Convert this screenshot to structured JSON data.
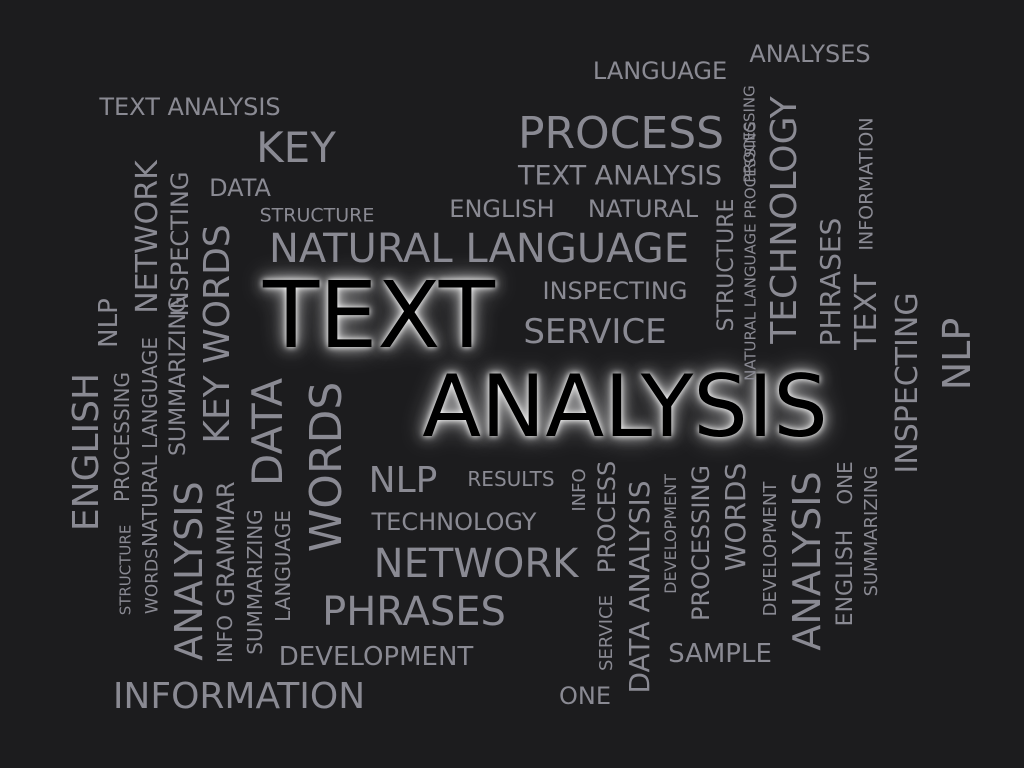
{
  "words": [
    {
      "text": "TEXT",
      "tier": "hero"
    },
    {
      "text": "ANALYSIS",
      "tier": "hero"
    },
    {
      "text": "LANGUAGE",
      "tier": "normal"
    },
    {
      "text": "ANALYSES",
      "tier": "normal"
    },
    {
      "text": "TEXT ANALYSIS",
      "tier": "normal"
    },
    {
      "text": "PROCESS",
      "tier": "normal"
    },
    {
      "text": "KEY",
      "tier": "normal"
    },
    {
      "text": "TEXT ANALYSIS",
      "tier": "normal"
    },
    {
      "text": "DATA",
      "tier": "normal"
    },
    {
      "text": "ENGLISH",
      "tier": "normal"
    },
    {
      "text": "NATURAL",
      "tier": "normal"
    },
    {
      "text": "STRUCTURE",
      "tier": "normal"
    },
    {
      "text": "NATURAL LANGUAGE",
      "tier": "normal"
    },
    {
      "text": "INSPECTING",
      "tier": "normal"
    },
    {
      "text": "SERVICE",
      "tier": "normal"
    },
    {
      "text": "NLP",
      "tier": "normal"
    },
    {
      "text": "RESULTS",
      "tier": "normal"
    },
    {
      "text": "TECHNOLOGY",
      "tier": "normal"
    },
    {
      "text": "NETWORK",
      "tier": "normal"
    },
    {
      "text": "PHRASES",
      "tier": "normal"
    },
    {
      "text": "DEVELOPMENT",
      "tier": "normal"
    },
    {
      "text": "INFORMATION",
      "tier": "normal"
    },
    {
      "text": "ONE",
      "tier": "normal"
    },
    {
      "text": "SAMPLE",
      "tier": "normal"
    },
    {
      "text": "NETWORK",
      "tier": "normal"
    },
    {
      "text": "INSPECTING",
      "tier": "normal"
    },
    {
      "text": "NLP",
      "tier": "normal"
    },
    {
      "text": "ENGLISH",
      "tier": "normal"
    },
    {
      "text": "PROCESSING",
      "tier": "normal"
    },
    {
      "text": "NATURAL LANGUAGE",
      "tier": "normal"
    },
    {
      "text": "SUMMARIZING",
      "tier": "normal"
    },
    {
      "text": "KEY WORDS",
      "tier": "normal"
    },
    {
      "text": "DATA",
      "tier": "normal"
    },
    {
      "text": "WORDS",
      "tier": "normal"
    },
    {
      "text": "STRUCTURE",
      "tier": "normal"
    },
    {
      "text": "WORDS",
      "tier": "normal"
    },
    {
      "text": "ANALYSIS",
      "tier": "normal"
    },
    {
      "text": "INFO",
      "tier": "normal"
    },
    {
      "text": "GRAMMAR",
      "tier": "normal"
    },
    {
      "text": "SUMMARIZING",
      "tier": "normal"
    },
    {
      "text": "LANGUAGE",
      "tier": "normal"
    },
    {
      "text": "PROCESSING",
      "tier": "normal"
    },
    {
      "text": "NATURAL LANGUAGE PROCESSING",
      "tier": "normal"
    },
    {
      "text": "STRUCTURE",
      "tier": "normal"
    },
    {
      "text": "TECHNOLOGY",
      "tier": "normal"
    },
    {
      "text": "PHRASES",
      "tier": "normal"
    },
    {
      "text": "TEXT",
      "tier": "normal"
    },
    {
      "text": "INFORMATION",
      "tier": "normal"
    },
    {
      "text": "INSPECTING",
      "tier": "normal"
    },
    {
      "text": "NLP",
      "tier": "normal"
    },
    {
      "text": "INFO",
      "tier": "normal"
    },
    {
      "text": "PROCESS",
      "tier": "normal"
    },
    {
      "text": "SERVICE",
      "tier": "normal"
    },
    {
      "text": "DATA ANALYSIS",
      "tier": "normal"
    },
    {
      "text": "DEVELOPMENT",
      "tier": "normal"
    },
    {
      "text": "PROCESSING",
      "tier": "normal"
    },
    {
      "text": "WORDS",
      "tier": "normal"
    },
    {
      "text": "DEVELOPMENT",
      "tier": "normal"
    },
    {
      "text": "ANALYSIS",
      "tier": "normal"
    },
    {
      "text": "ENGLISH",
      "tier": "normal"
    },
    {
      "text": "ONE",
      "tier": "normal"
    },
    {
      "text": "SUMMARIZING",
      "tier": "normal"
    }
  ]
}
